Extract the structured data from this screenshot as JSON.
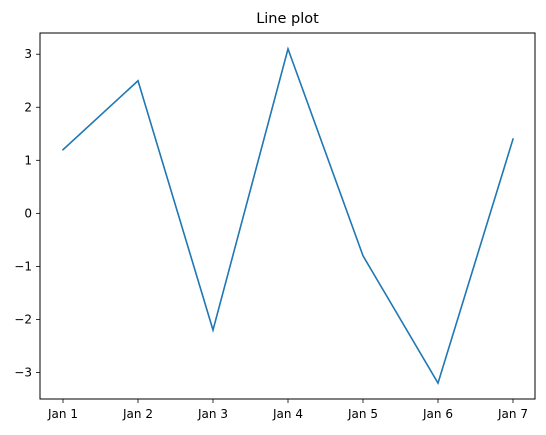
{
  "chart_data": {
    "type": "line",
    "title": "Line plot",
    "xlabel": "",
    "ylabel": "",
    "categories": [
      "Jan 1",
      "Jan 2",
      "Jan 3",
      "Jan 4",
      "Jan 5",
      "Jan 6",
      "Jan 7"
    ],
    "series": [
      {
        "values": [
          1.2,
          2.5,
          -2.2,
          3.1,
          -0.8,
          -3.2,
          1.4
        ],
        "color": "#1f77b4"
      }
    ],
    "yticks": [
      3,
      2,
      1,
      0,
      -1,
      -2,
      -3
    ],
    "ytick_labels": [
      "3",
      "2",
      "1",
      "0",
      "−1",
      "−2",
      "−3"
    ],
    "ylim": [
      -3.5,
      3.4
    ],
    "grid": false,
    "legend": false
  }
}
